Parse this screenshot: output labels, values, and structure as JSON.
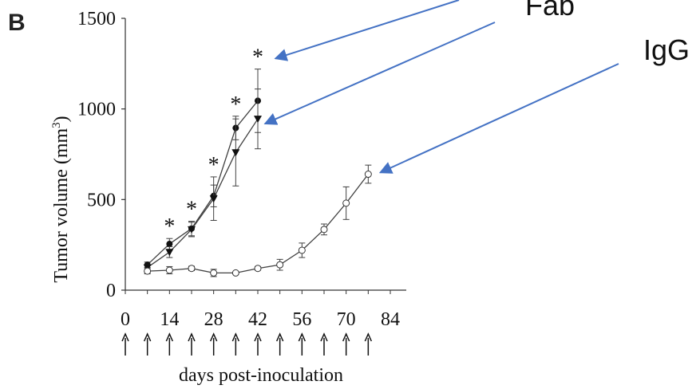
{
  "panel_label": "B",
  "annotations": [
    "Fab",
    "IgG"
  ],
  "colors": {
    "line": "#404040",
    "arrow_annotation": "#4472C4",
    "filled_marker": "#111111",
    "open_marker_fill": "#ffffff"
  },
  "chart_data": {
    "type": "line",
    "title": "",
    "xlabel": "days post-inoculation",
    "ylabel": "Tumor volume (mm3)",
    "xlim": [
      0,
      84
    ],
    "ylim": [
      0,
      1500
    ],
    "xticks": [
      0,
      14,
      28,
      42,
      56,
      70,
      84
    ],
    "yticks": [
      0,
      500,
      1000,
      1500
    ],
    "grid": false,
    "legend": "none",
    "treatment_days": [
      0,
      7,
      14,
      21,
      28,
      35,
      42,
      49,
      56,
      63,
      70,
      77
    ],
    "significance_marker": "*",
    "significance_days": [
      14,
      21,
      28,
      35,
      42
    ],
    "series": [
      {
        "marker": "circle-filled",
        "x": [
          7,
          14,
          21,
          28,
          35,
          42
        ],
        "y": [
          140,
          255,
          340,
          520,
          895,
          1045
        ],
        "err": [
          15,
          30,
          40,
          60,
          65,
          175
        ]
      },
      {
        "marker": "triangle-down-filled",
        "x": [
          7,
          14,
          21,
          28,
          35,
          42
        ],
        "y": [
          125,
          210,
          335,
          505,
          760,
          945
        ],
        "err": [
          15,
          30,
          40,
          120,
          185,
          165
        ]
      },
      {
        "marker": "circle-open",
        "x": [
          7,
          14,
          21,
          28,
          35,
          42,
          49,
          56,
          63,
          70,
          77
        ],
        "y": [
          105,
          110,
          120,
          95,
          95,
          120,
          140,
          220,
          335,
          480,
          640
        ],
        "err": [
          15,
          20,
          12,
          20,
          5,
          10,
          30,
          40,
          30,
          90,
          50
        ]
      }
    ]
  }
}
